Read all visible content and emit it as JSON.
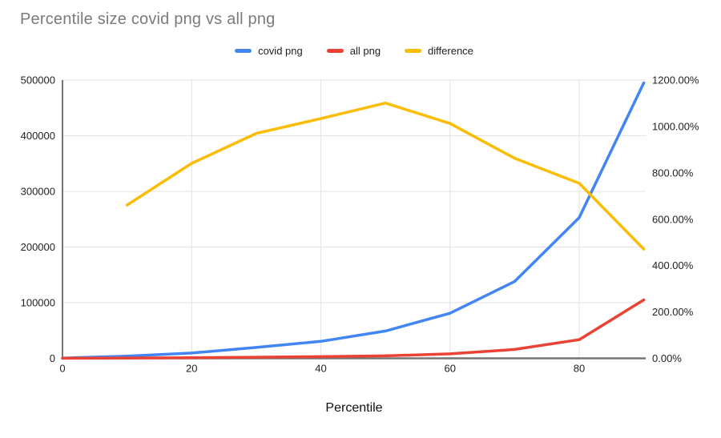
{
  "title": "Percentile size covid png vs all png",
  "x_axis_title": "Percentile",
  "legend": [
    {
      "label": "covid png",
      "color": "#4285F4"
    },
    {
      "label": "all png",
      "color": "#EA4335"
    },
    {
      "label": "difference",
      "color": "#FBBC04"
    }
  ],
  "left_axis_tick_labels": [
    "0",
    "100000",
    "200000",
    "300000",
    "400000",
    "500000"
  ],
  "right_axis_tick_labels": [
    "0.00%",
    "200.00%",
    "400.00%",
    "600.00%",
    "800.00%",
    "1000.00%",
    "1200.00%"
  ],
  "x_axis_tick_labels": [
    "0",
    "20",
    "40",
    "60",
    "80"
  ],
  "chart_data": {
    "type": "line",
    "title": "Percentile size covid png vs all png",
    "xlabel": "Percentile",
    "x": [
      0,
      10,
      20,
      30,
      40,
      50,
      60,
      70,
      80,
      90
    ],
    "series": [
      {
        "name": "covid png",
        "axis": "left",
        "color": "#4285F4",
        "values": [
          300,
          4000,
          9500,
          19500,
          30500,
          49000,
          81000,
          138000,
          253000,
          495000
        ]
      },
      {
        "name": "all png",
        "axis": "left",
        "color": "#EA4335",
        "values": [
          100,
          600,
          1130,
          2010,
          2950,
          4450,
          8000,
          16000,
          33500,
          105000
        ]
      },
      {
        "name": "difference",
        "axis": "right",
        "unit": "percent",
        "color": "#FBBC04",
        "values": [
          null,
          661,
          841,
          970,
          1034,
          1101,
          1013,
          863,
          755,
          471
        ]
      }
    ],
    "left_axis": {
      "min": 0,
      "max": 500000,
      "tick_step": 100000
    },
    "right_axis": {
      "min": 0,
      "max": 1200,
      "tick_step": 200,
      "format": "percent"
    },
    "x_range": [
      0,
      90.3
    ],
    "x_ticks": [
      0,
      20,
      40,
      60,
      80
    ],
    "grid": true,
    "legend_position": "top"
  },
  "colors": {
    "title_text": "#7b7b7b",
    "tick_text": "#222222",
    "axis_line": "#757575",
    "gridline": "#e3e3e3",
    "background": "#ffffff"
  }
}
